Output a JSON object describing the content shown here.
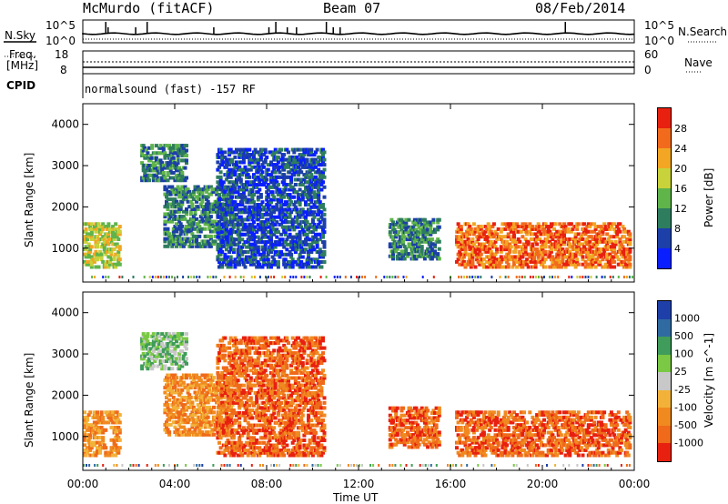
{
  "header": {
    "station": "McMurdo (fitACF)",
    "beam": "Beam 07",
    "date": "08/Feb/2014"
  },
  "top_panels": {
    "nsky_label": "N.Sky",
    "nsky_scale_top": "10^5",
    "nsky_scale_bottom": "10^0",
    "nsearch_label": "N.Search",
    "freq_label": "Freq.",
    "freq_unit": "[MHz]",
    "freq_top": "18",
    "freq_bottom": "8",
    "nave_top": "60",
    "nave_bottom": "0",
    "nave_label": "Nave",
    "cpid_label": "CPID",
    "cpid_value": "normalsound (fast) -157 RF"
  },
  "chart_data": [
    {
      "type": "heatmap",
      "title": "Power",
      "ylabel": "Slant Range [km]",
      "xlabel": "Time UT",
      "ylim": [
        180,
        4500
      ],
      "yticks": [
        "1000",
        "2000",
        "3000",
        "4000"
      ],
      "xticks": [
        "00:00",
        "04:00",
        "08:00",
        "12:00",
        "16:00",
        "20:00",
        "00:00"
      ],
      "colorbar_label": "Power [dB]",
      "colorbar_ticks": [
        "4",
        "8",
        "12",
        "16",
        "20",
        "24",
        "28"
      ],
      "colors": [
        "#0a1fff",
        "#1c3fa8",
        "#2e7d5e",
        "#5fb44a",
        "#c8d23a",
        "#f2a623",
        "#f26b1d",
        "#e82010"
      ],
      "echo_regions": [
        {
          "t0": 0.0,
          "t1": 1.6,
          "r0": 500,
          "r1": 1600,
          "level": 4
        },
        {
          "t0": 2.5,
          "t1": 4.5,
          "r0": 2600,
          "r1": 3500,
          "level": 2
        },
        {
          "t0": 3.5,
          "t1": 6.5,
          "r0": 1000,
          "r1": 2500,
          "level": 2
        },
        {
          "t0": 5.8,
          "t1": 10.5,
          "r0": 500,
          "r1": 3400,
          "level": 1
        },
        {
          "t0": 13.3,
          "t1": 15.5,
          "r0": 700,
          "r1": 1700,
          "level": 2
        },
        {
          "t0": 16.2,
          "t1": 23.8,
          "r0": 500,
          "r1": 1600,
          "level": 6
        }
      ]
    },
    {
      "type": "heatmap",
      "title": "Velocity",
      "ylabel": "Slant Range [km]",
      "xlabel": "Time UT",
      "ylim": [
        180,
        4500
      ],
      "yticks": [
        "1000",
        "2000",
        "3000",
        "4000"
      ],
      "xticks": [
        "00:00",
        "04:00",
        "08:00",
        "12:00",
        "16:00",
        "20:00",
        "00:00"
      ],
      "colorbar_label": "Velocity [m s^-1]",
      "colorbar_ticks": [
        "1000",
        "500",
        "100",
        "25",
        "-25",
        "-100",
        "-500",
        "-1000"
      ],
      "colors": [
        "#1f3fa8",
        "#2f6aa0",
        "#3f9c5a",
        "#7ac844",
        "#c8c8c8",
        "#f2b23a",
        "#f08a20",
        "#ef6a1a",
        "#e82010"
      ],
      "echo_regions": [
        {
          "t0": 0.0,
          "t1": 1.6,
          "r0": 500,
          "r1": 1600,
          "level": 6
        },
        {
          "t0": 2.5,
          "t1": 4.5,
          "r0": 2600,
          "r1": 3500,
          "level": 3
        },
        {
          "t0": 3.5,
          "t1": 6.5,
          "r0": 1000,
          "r1": 2500,
          "level": 6
        },
        {
          "t0": 5.8,
          "t1": 10.5,
          "r0": 500,
          "r1": 3400,
          "level": 7
        },
        {
          "t0": 13.3,
          "t1": 15.5,
          "r0": 700,
          "r1": 1700,
          "level": 7
        },
        {
          "t0": 16.2,
          "t1": 23.8,
          "r0": 500,
          "r1": 1600,
          "level": 7
        }
      ]
    }
  ],
  "xaxis_title": "Time UT"
}
